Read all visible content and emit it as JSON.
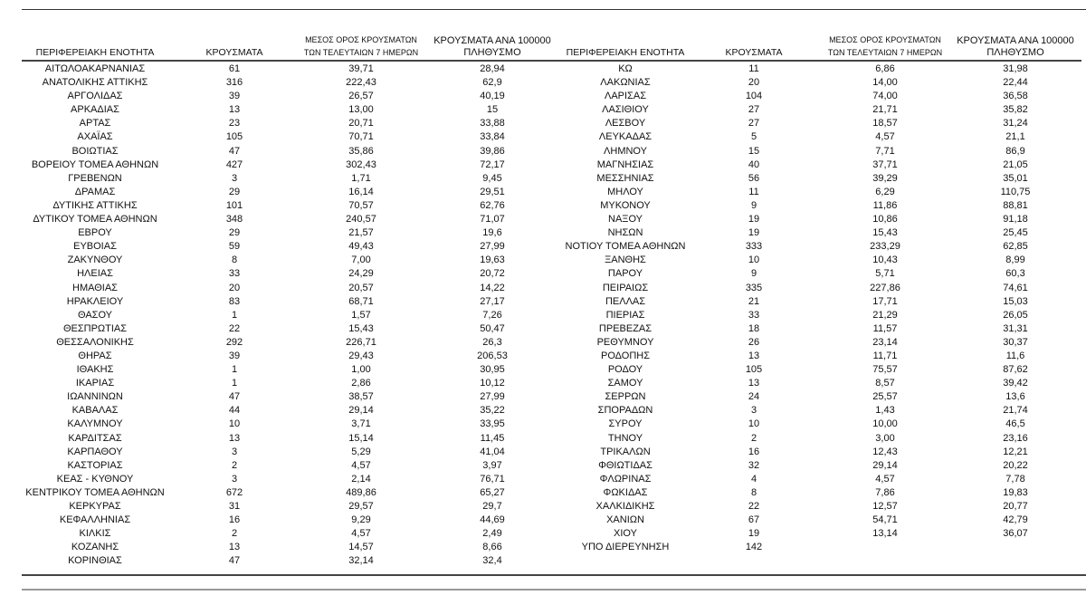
{
  "headers": {
    "region": "ΠΕΡΙΦΕΡΕΙΑΚΗ ΕΝΟΤΗΤΑ",
    "cases": "ΚΡΟΥΣΜΑΤΑ",
    "avg_line1": "ΜΕΣΟΣ ΟΡΟΣ ΚΡΟΥΣΜΑΤΩΝ",
    "avg_line2": "ΤΩΝ ΤΕΛΕΥΤΑΙΩΝ 7 ΗΜΕΡΩΝ",
    "rate_line1": "ΚΡΟΥΣΜΑΤΑ ΑΝΑ 100000",
    "rate_line2": "ΠΛΗΘΥΣΜΟ"
  },
  "left_rows": [
    [
      "ΑΙΤΩΛΟΑΚΑΡΝΑΝΙΑΣ",
      "61",
      "39,71",
      "28,94"
    ],
    [
      "ΑΝΑΤΟΛΙΚΗΣ ΑΤΤΙΚΗΣ",
      "316",
      "222,43",
      "62,9"
    ],
    [
      "ΑΡΓΟΛΙΔΑΣ",
      "39",
      "26,57",
      "40,19"
    ],
    [
      "ΑΡΚΑΔΙΑΣ",
      "13",
      "13,00",
      "15"
    ],
    [
      "ΑΡΤΑΣ",
      "23",
      "20,71",
      "33,88"
    ],
    [
      "ΑΧΑΪΑΣ",
      "105",
      "70,71",
      "33,84"
    ],
    [
      "ΒΟΙΩΤΙΑΣ",
      "47",
      "35,86",
      "39,86"
    ],
    [
      "ΒΟΡΕΙΟΥ ΤΟΜΕΑ ΑΘΗΝΩΝ",
      "427",
      "302,43",
      "72,17"
    ],
    [
      "ΓΡΕΒΕΝΩΝ",
      "3",
      "1,71",
      "9,45"
    ],
    [
      "ΔΡΑΜΑΣ",
      "29",
      "16,14",
      "29,51"
    ],
    [
      "ΔΥΤΙΚΗΣ ΑΤΤΙΚΗΣ",
      "101",
      "70,57",
      "62,76"
    ],
    [
      "ΔΥΤΙΚΟΥ ΤΟΜΕΑ ΑΘΗΝΩΝ",
      "348",
      "240,57",
      "71,07"
    ],
    [
      "ΕΒΡΟΥ",
      "29",
      "21,57",
      "19,6"
    ],
    [
      "ΕΥΒΟΙΑΣ",
      "59",
      "49,43",
      "27,99"
    ],
    [
      "ΖΑΚΥΝΘΟΥ",
      "8",
      "7,00",
      "19,63"
    ],
    [
      "ΗΛΕΙΑΣ",
      "33",
      "24,29",
      "20,72"
    ],
    [
      "ΗΜΑΘΙΑΣ",
      "20",
      "20,57",
      "14,22"
    ],
    [
      "ΗΡΑΚΛΕΙΟΥ",
      "83",
      "68,71",
      "27,17"
    ],
    [
      "ΘΑΣΟΥ",
      "1",
      "1,57",
      "7,26"
    ],
    [
      "ΘΕΣΠΡΩΤΙΑΣ",
      "22",
      "15,43",
      "50,47"
    ],
    [
      "ΘΕΣΣΑΛΟΝΙΚΗΣ",
      "292",
      "226,71",
      "26,3"
    ],
    [
      "ΘΗΡΑΣ",
      "39",
      "29,43",
      "206,53"
    ],
    [
      "ΙΘΑΚΗΣ",
      "1",
      "1,00",
      "30,95"
    ],
    [
      "ΙΚΑΡΙΑΣ",
      "1",
      "2,86",
      "10,12"
    ],
    [
      "ΙΩΑΝΝΙΝΩΝ",
      "47",
      "38,57",
      "27,99"
    ],
    [
      "ΚΑΒΑΛΑΣ",
      "44",
      "29,14",
      "35,22"
    ],
    [
      "ΚΑΛΥΜΝΟΥ",
      "10",
      "3,71",
      "33,95"
    ],
    [
      "ΚΑΡΔΙΤΣΑΣ",
      "13",
      "15,14",
      "11,45"
    ],
    [
      "ΚΑΡΠΑΘΟΥ",
      "3",
      "5,29",
      "41,04"
    ],
    [
      "ΚΑΣΤΟΡΙΑΣ",
      "2",
      "4,57",
      "3,97"
    ],
    [
      "ΚΕΑΣ - ΚΥΘΝΟΥ",
      "3",
      "2,14",
      "76,71"
    ],
    [
      "ΚΕΝΤΡΙΚΟΥ ΤΟΜΕΑ ΑΘΗΝΩΝ",
      "672",
      "489,86",
      "65,27"
    ],
    [
      "ΚΕΡΚΥΡΑΣ",
      "31",
      "29,57",
      "29,7"
    ],
    [
      "ΚΕΦΑΛΛΗΝΙΑΣ",
      "16",
      "9,29",
      "44,69"
    ],
    [
      "ΚΙΛΚΙΣ",
      "2",
      "4,57",
      "2,49"
    ],
    [
      "ΚΟΖΑΝΗΣ",
      "13",
      "14,57",
      "8,66"
    ],
    [
      "ΚΟΡΙΝΘΙΑΣ",
      "47",
      "32,14",
      "32,4"
    ]
  ],
  "right_rows": [
    [
      "ΚΩ",
      "11",
      "6,86",
      "31,98"
    ],
    [
      "ΛΑΚΩΝΙΑΣ",
      "20",
      "14,00",
      "22,44"
    ],
    [
      "ΛΑΡΙΣΑΣ",
      "104",
      "74,00",
      "36,58"
    ],
    [
      "ΛΑΣΙΘΙΟΥ",
      "27",
      "21,71",
      "35,82"
    ],
    [
      "ΛΕΣΒΟΥ",
      "27",
      "18,57",
      "31,24"
    ],
    [
      "ΛΕΥΚΑΔΑΣ",
      "5",
      "4,57",
      "21,1"
    ],
    [
      "ΛΗΜΝΟΥ",
      "15",
      "7,71",
      "86,9"
    ],
    [
      "ΜΑΓΝΗΣΙΑΣ",
      "40",
      "37,71",
      "21,05"
    ],
    [
      "ΜΕΣΣΗΝΙΑΣ",
      "56",
      "39,29",
      "35,01"
    ],
    [
      "ΜΗΛΟΥ",
      "11",
      "6,29",
      "110,75"
    ],
    [
      "ΜΥΚΟΝΟΥ",
      "9",
      "11,86",
      "88,81"
    ],
    [
      "ΝΑΞΟΥ",
      "19",
      "10,86",
      "91,18"
    ],
    [
      "ΝΗΣΩΝ",
      "19",
      "15,43",
      "25,45"
    ],
    [
      "ΝΟΤΙΟΥ ΤΟΜΕΑ ΑΘΗΝΩΝ",
      "333",
      "233,29",
      "62,85"
    ],
    [
      "ΞΑΝΘΗΣ",
      "10",
      "10,43",
      "8,99"
    ],
    [
      "ΠΑΡΟΥ",
      "9",
      "5,71",
      "60,3"
    ],
    [
      "ΠΕΙΡΑΙΩΣ",
      "335",
      "227,86",
      "74,61"
    ],
    [
      "ΠΕΛΛΑΣ",
      "21",
      "17,71",
      "15,03"
    ],
    [
      "ΠΙΕΡΙΑΣ",
      "33",
      "21,29",
      "26,05"
    ],
    [
      "ΠΡΕΒΕΖΑΣ",
      "18",
      "11,57",
      "31,31"
    ],
    [
      "ΡΕΘΥΜΝΟΥ",
      "26",
      "23,14",
      "30,37"
    ],
    [
      "ΡΟΔΟΠΗΣ",
      "13",
      "11,71",
      "11,6"
    ],
    [
      "ΡΟΔΟΥ",
      "105",
      "75,57",
      "87,62"
    ],
    [
      "ΣΑΜΟΥ",
      "13",
      "8,57",
      "39,42"
    ],
    [
      "ΣΕΡΡΩΝ",
      "24",
      "25,57",
      "13,6"
    ],
    [
      "ΣΠΟΡΑΔΩΝ",
      "3",
      "1,43",
      "21,74"
    ],
    [
      "ΣΥΡΟΥ",
      "10",
      "10,00",
      "46,5"
    ],
    [
      "ΤΗΝΟΥ",
      "2",
      "3,00",
      "23,16"
    ],
    [
      "ΤΡΙΚΑΛΩΝ",
      "16",
      "12,43",
      "12,21"
    ],
    [
      "ΦΘΙΩΤΙΔΑΣ",
      "32",
      "29,14",
      "20,22"
    ],
    [
      "ΦΛΩΡΙΝΑΣ",
      "4",
      "4,57",
      "7,78"
    ],
    [
      "ΦΩΚΙΔΑΣ",
      "8",
      "7,86",
      "19,83"
    ],
    [
      "ΧΑΛΚΙΔΙΚΗΣ",
      "22",
      "12,57",
      "20,77"
    ],
    [
      "ΧΑΝΙΩΝ",
      "67",
      "54,71",
      "42,79"
    ],
    [
      "ΧΙΟΥ",
      "19",
      "13,14",
      "36,07"
    ],
    [
      "ΥΠΟ ΔΙΕΡΕΥΝΗΣΗ",
      "142",
      "",
      ""
    ]
  ]
}
